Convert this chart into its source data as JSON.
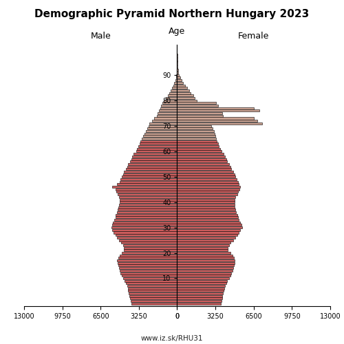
{
  "title": "Demographic Pyramid Northern Hungary 2023",
  "male_label": "Male",
  "female_label": "Female",
  "age_label": "Age",
  "footer": "www.iz.sk/RHU31",
  "xlim": 13000,
  "bar_color_young": "#cd5c5c",
  "bar_color_old": "#c8a090",
  "bar_edge_color": "#000000",
  "bar_linewidth": 0.4,
  "color_threshold": 65,
  "ages": [
    0,
    1,
    2,
    3,
    4,
    5,
    6,
    7,
    8,
    9,
    10,
    11,
    12,
    13,
    14,
    15,
    16,
    17,
    18,
    19,
    20,
    21,
    22,
    23,
    24,
    25,
    26,
    27,
    28,
    29,
    30,
    31,
    32,
    33,
    34,
    35,
    36,
    37,
    38,
    39,
    40,
    41,
    42,
    43,
    44,
    45,
    46,
    47,
    48,
    49,
    50,
    51,
    52,
    53,
    54,
    55,
    56,
    57,
    58,
    59,
    60,
    61,
    62,
    63,
    64,
    65,
    66,
    67,
    68,
    69,
    70,
    71,
    72,
    73,
    74,
    75,
    76,
    77,
    78,
    79,
    80,
    81,
    82,
    83,
    84,
    85,
    86,
    87,
    88,
    89,
    90,
    91,
    92,
    93,
    94,
    95,
    96,
    97,
    98,
    99,
    100
  ],
  "male": [
    3900,
    3950,
    4000,
    4050,
    4100,
    4150,
    4200,
    4250,
    4350,
    4450,
    4600,
    4700,
    4800,
    4900,
    4950,
    5000,
    5050,
    5100,
    5000,
    4900,
    4700,
    4500,
    4500,
    4600,
    4750,
    4950,
    5100,
    5250,
    5400,
    5500,
    5600,
    5550,
    5450,
    5350,
    5250,
    5200,
    5100,
    5050,
    5000,
    4950,
    4900,
    4850,
    4950,
    5050,
    5150,
    5200,
    5500,
    5100,
    4900,
    4800,
    4700,
    4600,
    4500,
    4350,
    4250,
    4150,
    4000,
    3900,
    3800,
    3700,
    3500,
    3400,
    3300,
    3200,
    3100,
    3000,
    2900,
    2750,
    2650,
    2550,
    2450,
    2350,
    2150,
    1950,
    1750,
    1650,
    1550,
    1450,
    1350,
    1250,
    1150,
    950,
    800,
    650,
    550,
    450,
    340,
    260,
    170,
    110,
    65,
    40,
    20,
    10,
    5,
    3,
    1,
    1,
    0,
    0,
    0
  ],
  "female": [
    3700,
    3750,
    3800,
    3850,
    3900,
    3950,
    4000,
    4050,
    4150,
    4250,
    4400,
    4500,
    4600,
    4700,
    4750,
    4800,
    4850,
    4900,
    4800,
    4700,
    4500,
    4300,
    4300,
    4400,
    4550,
    4750,
    4950,
    5100,
    5250,
    5350,
    5500,
    5450,
    5350,
    5250,
    5150,
    5100,
    5000,
    4950,
    4900,
    4860,
    4900,
    4880,
    4950,
    5100,
    5200,
    5280,
    5350,
    5250,
    5150,
    5050,
    4950,
    4850,
    4750,
    4600,
    4500,
    4400,
    4250,
    4150,
    4050,
    3950,
    3750,
    3650,
    3550,
    3450,
    3350,
    3280,
    3250,
    3200,
    3100,
    3000,
    2900,
    7200,
    6800,
    6500,
    3900,
    3800,
    7000,
    6500,
    3500,
    3300,
    1650,
    1500,
    1350,
    1150,
    1000,
    850,
    650,
    500,
    360,
    240,
    170,
    110,
    70,
    40,
    20,
    10,
    5,
    2,
    1,
    0,
    0
  ]
}
